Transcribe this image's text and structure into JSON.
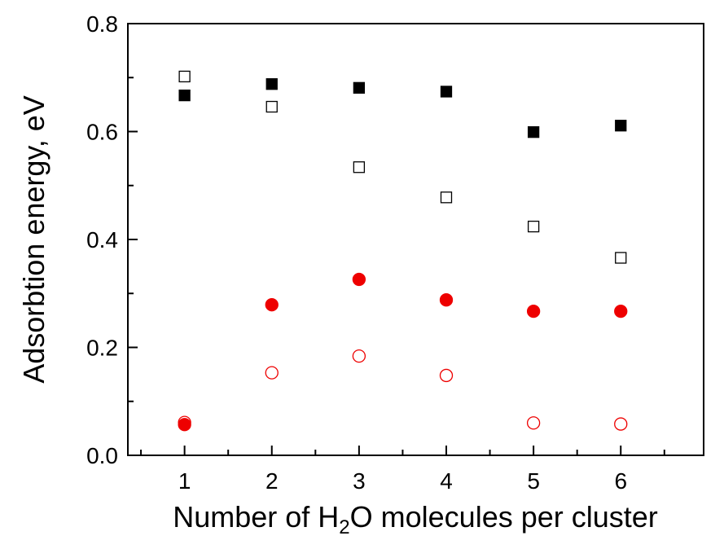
{
  "chart_data": {
    "type": "scatter",
    "xlabel_parts": [
      "Number of H",
      "2",
      "O molecules per cluster"
    ],
    "ylabel": "Adsorbtion energy, eV",
    "xlim": [
      0.35,
      6.95
    ],
    "ylim": [
      0.0,
      0.8
    ],
    "x_ticks": [
      1,
      2,
      3,
      4,
      5,
      6
    ],
    "x_tick_labels": [
      "1",
      "2",
      "3",
      "4",
      "5",
      "6"
    ],
    "y_ticks": [
      0.0,
      0.2,
      0.4,
      0.6,
      0.8
    ],
    "y_tick_labels": [
      "0.0",
      "0.2",
      "0.4",
      "0.6",
      "0.8"
    ],
    "y_minor_ticks": [
      0.1,
      0.3,
      0.5,
      0.7
    ],
    "x_minor_ticks": [
      0.5,
      1.5,
      2.5,
      3.5,
      4.5,
      5.5,
      6.5
    ],
    "grid": false,
    "x": [
      1,
      2,
      3,
      4,
      5,
      6
    ],
    "series": [
      {
        "marker": "square-filled",
        "color": "#000000",
        "values": [
          0.667,
          0.688,
          0.681,
          0.674,
          0.599,
          0.611
        ]
      },
      {
        "marker": "square-open",
        "color": "#000000",
        "values": [
          0.702,
          0.646,
          0.534,
          0.478,
          0.424,
          0.366
        ]
      },
      {
        "marker": "circle-filled",
        "color": "#ee0000",
        "values": [
          0.057,
          0.279,
          0.326,
          0.288,
          0.267,
          0.267
        ]
      },
      {
        "marker": "circle-open",
        "color": "#ee0000",
        "values": [
          0.061,
          0.153,
          0.184,
          0.148,
          0.06,
          0.058
        ]
      }
    ]
  }
}
